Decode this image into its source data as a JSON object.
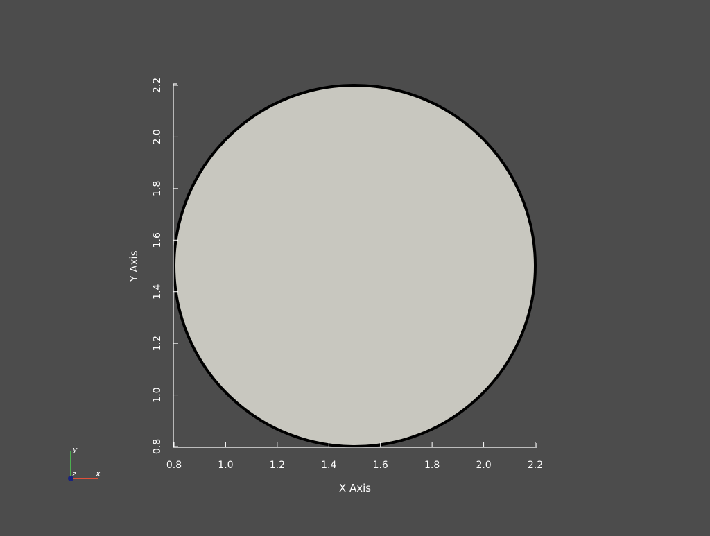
{
  "scene": {
    "background": "#4c4c4c",
    "shape": "disk",
    "disk_center": [
      1.5,
      1.5
    ],
    "disk_radius": 0.7,
    "fill_color": "#c8c7bf",
    "edge_color": "#000000",
    "axis_color": "#ffffff"
  },
  "axes": {
    "x_label": "X Axis",
    "y_label": "Y Axis",
    "x_range": [
      0.8,
      2.2
    ],
    "y_range": [
      0.8,
      2.2
    ],
    "x_ticks": [
      "0.8",
      "1.0",
      "1.2",
      "1.4",
      "1.6",
      "1.8",
      "2.0",
      "2.2"
    ],
    "y_ticks": [
      "0.8",
      "1.0",
      "1.2",
      "1.4",
      "1.6",
      "1.8",
      "2.0",
      "2.2"
    ]
  },
  "orientation_widget": {
    "x_label": "x",
    "y_label": "y",
    "z_label": "z",
    "x_color": "#e0503a",
    "y_color": "#4caf50",
    "z_color": "#1a237e"
  }
}
